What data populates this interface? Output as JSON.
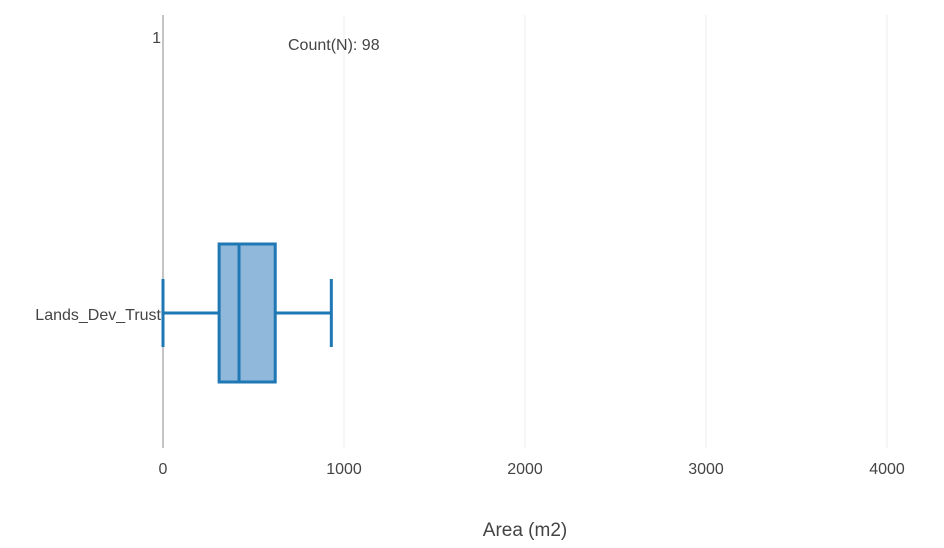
{
  "chart_data": {
    "type": "box",
    "orientation": "horizontal",
    "xlabel": "Area (m2)",
    "xlim": [
      0,
      4000
    ],
    "xticks": [
      0,
      1000,
      2000,
      3000,
      4000
    ],
    "xtick_labels": [
      "0",
      "1000",
      "2000",
      "3000",
      "4000"
    ],
    "grid": true,
    "categories": [
      "Lands_Dev_Trust"
    ],
    "y_extra_tick_label": "1",
    "annotation": "Count(N): 98",
    "series": [
      {
        "category": "Lands_Dev_Trust",
        "count": 98,
        "min": 0,
        "q1": 310,
        "median": 420,
        "q3": 620,
        "max": 930,
        "color": "#1f77b4",
        "fill": "#8fb8da"
      }
    ]
  }
}
